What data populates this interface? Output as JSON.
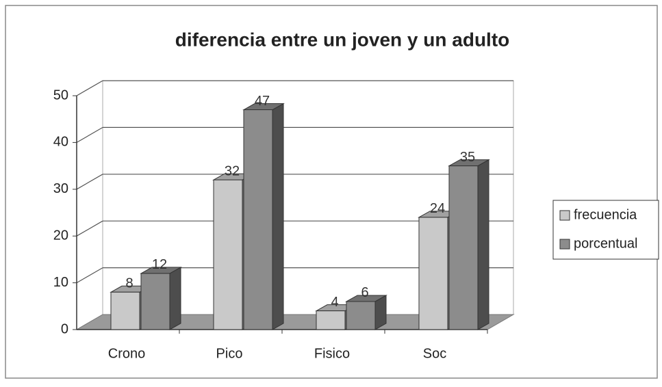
{
  "chart_data": {
    "type": "bar3d",
    "title": "diferencia entre un joven y un adulto",
    "categories": [
      "Crono",
      "Pico",
      "Fisico",
      "Soc"
    ],
    "series": [
      {
        "name": "frecuencia",
        "color": "#c9c9c9",
        "values": [
          8,
          32,
          4,
          24
        ]
      },
      {
        "name": "porcentual",
        "color": "#8c8c8c",
        "values": [
          12,
          47,
          6,
          35
        ]
      }
    ],
    "ylim": [
      0,
      50
    ],
    "yticks": [
      0,
      10,
      20,
      30,
      40,
      50
    ],
    "grid": true,
    "legend": "right"
  }
}
